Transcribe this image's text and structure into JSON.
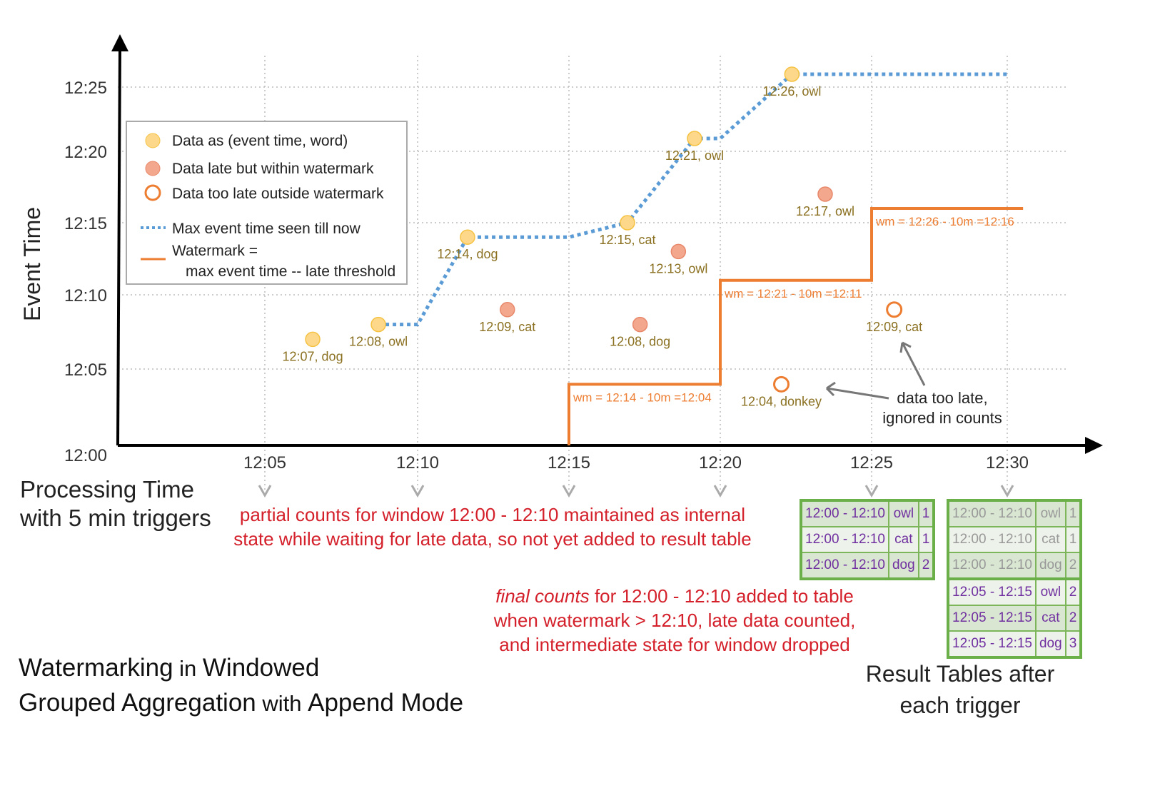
{
  "title_parts": [
    [
      "Watermarking",
      true
    ],
    [
      " in ",
      false
    ],
    [
      "Windowed",
      true
    ],
    [
      "Grouped Aggregation",
      true
    ],
    [
      " with ",
      false
    ],
    [
      "Append Mode",
      true
    ]
  ],
  "axes": {
    "y_label": "Event Time",
    "x_label_1": "Processing Time",
    "x_label_2": "with 5 min triggers",
    "y_ticks": [
      "12:00",
      "12:05",
      "12:10",
      "12:15",
      "12:20",
      "12:25"
    ],
    "x_ticks": [
      "12:05",
      "12:10",
      "12:15",
      "12:20",
      "12:25",
      "12:30"
    ]
  },
  "legend": {
    "items": [
      "Data as (event time, word)",
      "Data late but within watermark",
      "Data too late outside watermark",
      "Max event time seen till now",
      "Watermark =",
      "max event time -- late threshold"
    ]
  },
  "colors": {
    "on_time": "#fdd88a",
    "late": "#f3a88e",
    "too_late": "#ed7d31",
    "max_line": "#5b9bd5",
    "watermark": "#ed7d31",
    "label": "#8a7020",
    "table_border": "#6aaf47",
    "table_text": "#7030a0"
  },
  "points": [
    {
      "proc": "12:06:34",
      "event": "12:07",
      "label": "12:07, dog",
      "kind": "on_time"
    },
    {
      "proc": "12:08:43",
      "event": "12:08",
      "label": "12:08, owl",
      "kind": "on_time"
    },
    {
      "proc": "12:11:39",
      "event": "12:14",
      "label": "12:14, dog",
      "kind": "on_time"
    },
    {
      "proc": "12:12:58",
      "event": "12:09",
      "label": "12:09, cat",
      "kind": "late"
    },
    {
      "proc": "12:16:56",
      "event": "12:15",
      "label": "12:15, cat",
      "kind": "on_time"
    },
    {
      "proc": "12:17:21",
      "event": "12:08",
      "label": "12:08, dog",
      "kind": "late"
    },
    {
      "proc": "12:18:37",
      "event": "12:13",
      "label": "12:13, owl",
      "kind": "late"
    },
    {
      "proc": "12:19:09",
      "event": "12:21",
      "label": "12:21, owl",
      "kind": "on_time"
    },
    {
      "proc": "12:22:01",
      "event": "12:04",
      "label": "12:04, donkey",
      "kind": "too_late"
    },
    {
      "proc": "12:22:22",
      "event": "12:26",
      "label": "12:26, owl",
      "kind": "on_time"
    },
    {
      "proc": "12:23:28",
      "event": "12:17",
      "label": "12:17, owl",
      "kind": "late"
    },
    {
      "proc": "12:25:50",
      "event": "12:09",
      "label": "12:09, cat",
      "kind": "too_late"
    }
  ],
  "max_event_line": [
    [
      "12:08:43",
      "12:08"
    ],
    [
      "12:10",
      "12:08"
    ],
    [
      "12:11:39",
      "12:14"
    ],
    [
      "12:15",
      "12:14"
    ],
    [
      "12:16:56",
      "12:15"
    ],
    [
      "12:19:09",
      "12:21"
    ],
    [
      "12:20",
      "12:21"
    ],
    [
      "12:22:22",
      "12:26"
    ],
    [
      "12:30",
      "12:26"
    ]
  ],
  "watermark_line": [
    [
      "12:15",
      "12:00"
    ],
    [
      "12:15",
      "12:04"
    ],
    [
      "12:20",
      "12:04"
    ],
    [
      "12:20",
      "12:11"
    ],
    [
      "12:25",
      "12:11"
    ],
    [
      "12:25",
      "12:16"
    ],
    [
      "12:30:35",
      "12:16"
    ]
  ],
  "watermark_labels": [
    {
      "proc": "12:15",
      "event": "12:04",
      "text": "wm = 12:14 - 10m =12:04"
    },
    {
      "proc": "12:20",
      "event": "12:11",
      "text": "wm = 12:21 - 10m =12:11"
    },
    {
      "proc": "12:25",
      "event": "12:16",
      "text": "wm = 12:26 - 10m =12:16"
    }
  ],
  "too_late_note": [
    "data too late,",
    "ignored in counts"
  ],
  "partial_note": [
    "partial counts for window 12:00 - 12:10 maintained as internal",
    "state while waiting for late data, so not yet added  to result table"
  ],
  "final_note": {
    "em": "final counts",
    "rest": " for 12:00 - 12:10 added to table",
    "lines": [
      "when watermark > 12:10, late data counted,",
      "and intermediate state for window dropped"
    ]
  },
  "result_tables": [
    {
      "rows": [
        [
          "12:00 - 12:10",
          "owl",
          "1"
        ],
        [
          "12:00 - 12:10",
          "cat",
          "1"
        ],
        [
          "12:00 - 12:10",
          "dog",
          "2"
        ]
      ]
    },
    {
      "rows": [
        [
          "12:00 - 12:10",
          "owl",
          "1"
        ],
        [
          "12:00 - 12:10",
          "cat",
          "1"
        ],
        [
          "12:00 - 12:10",
          "dog",
          "2"
        ],
        [
          "12:05 - 12:15",
          "owl",
          "2"
        ],
        [
          "12:05 - 12:15",
          "cat",
          "2"
        ],
        [
          "12:05 - 12:15",
          "dog",
          "3"
        ]
      ]
    }
  ],
  "result_caption": [
    "Result Tables after",
    "each trigger"
  ]
}
